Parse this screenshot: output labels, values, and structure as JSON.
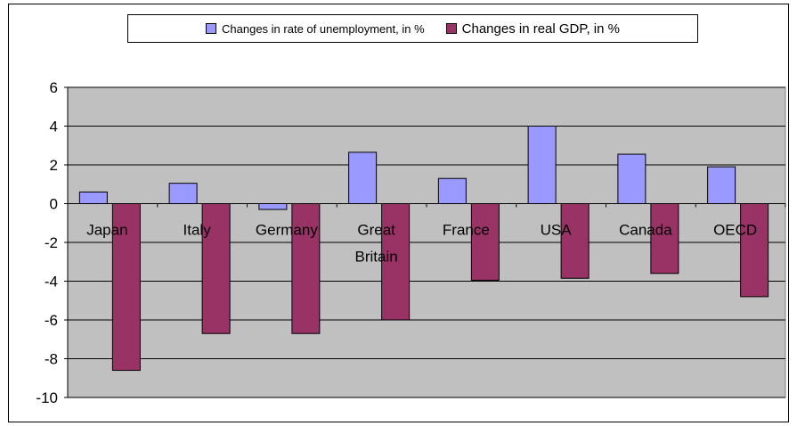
{
  "chart_data": {
    "type": "bar",
    "title": "",
    "xlabel": "",
    "ylabel": "",
    "categories": [
      [
        "Japan"
      ],
      [
        "Italy"
      ],
      [
        "Germany"
      ],
      [
        "Great",
        "Britain"
      ],
      [
        "France"
      ],
      [
        "USA"
      ],
      [
        "Canada"
      ],
      [
        "OECD"
      ]
    ],
    "series": [
      {
        "name": "Changes in rate of unemployment, in %",
        "color": "#9999ff",
        "values": [
          0.6,
          1.05,
          -0.3,
          2.65,
          1.3,
          4.0,
          2.55,
          1.9
        ]
      },
      {
        "name": "Changes in real GDP, in %",
        "color": "#993366",
        "values": [
          -8.6,
          -6.7,
          -6.7,
          -6.0,
          -3.95,
          -3.85,
          -3.6,
          -4.8
        ]
      }
    ],
    "ylim": [
      -10,
      6
    ],
    "yticks": [
      6,
      4,
      2,
      0,
      -2,
      -4,
      -6,
      -8,
      -10
    ],
    "grid": true,
    "plot_background": "#c0c0c0",
    "legend_position": "top"
  }
}
